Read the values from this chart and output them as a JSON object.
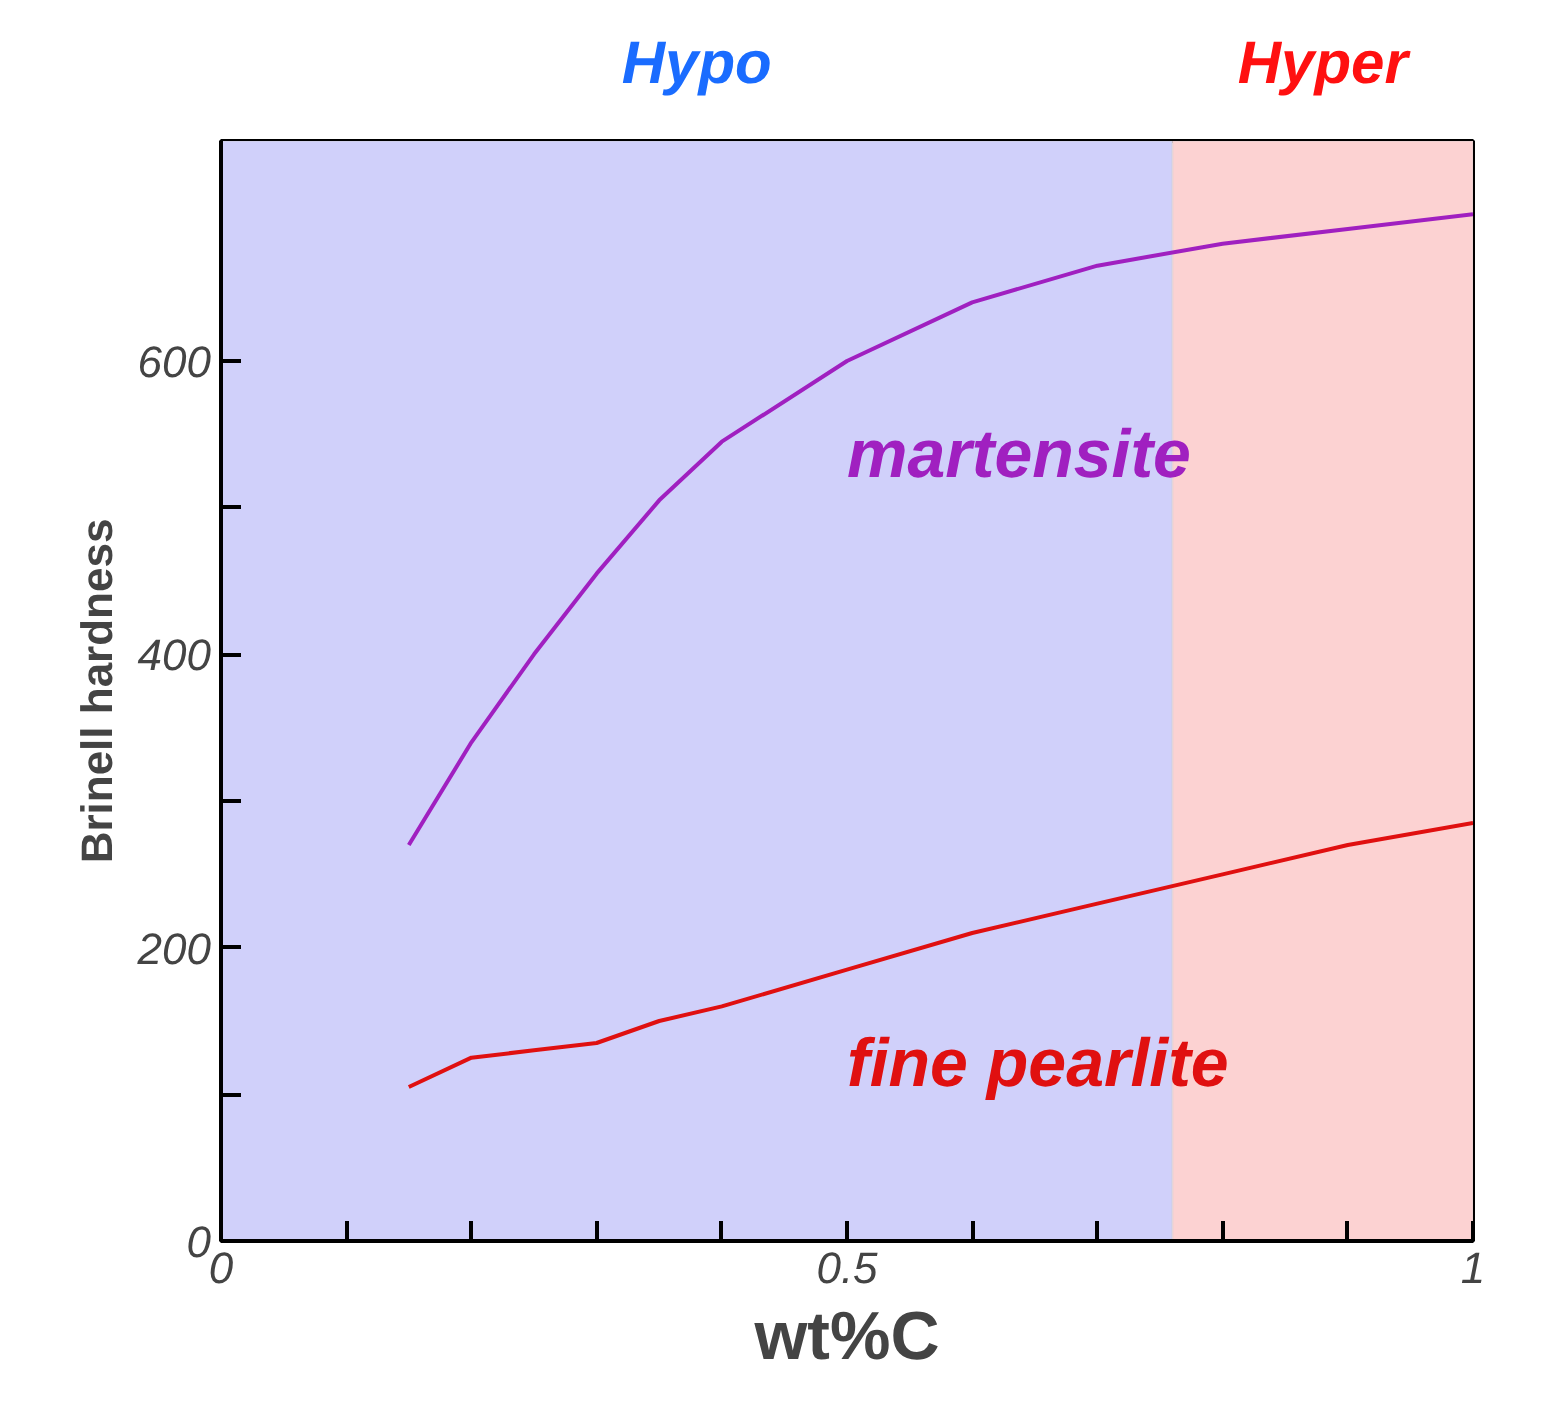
{
  "chart_data": {
    "type": "line",
    "xlabel": "wt%C",
    "ylabel": "Brinell hardness",
    "xlim": [
      0,
      1
    ],
    "ylim": [
      0,
      750
    ],
    "xticks": [
      0,
      {
        "value": 0.1,
        "label": null
      },
      {
        "value": 0.2,
        "label": null
      },
      {
        "value": 0.3,
        "label": null
      },
      {
        "value": 0.4,
        "label": null
      },
      0.5,
      {
        "value": 0.6,
        "label": null
      },
      {
        "value": 0.7,
        "label": null
      },
      {
        "value": 0.8,
        "label": null
      },
      {
        "value": 0.9,
        "label": null
      },
      1
    ],
    "yticks": [
      0,
      {
        "value": 100,
        "label": null
      },
      200,
      {
        "value": 300,
        "label": null
      },
      400,
      {
        "value": 500,
        "label": null
      },
      600
    ],
    "x": [
      0.15,
      0.2,
      0.25,
      0.3,
      0.35,
      0.4,
      0.5,
      0.6,
      0.7,
      0.8,
      0.9,
      1.0
    ],
    "series": [
      {
        "name": "martensite",
        "color": "#a020c0",
        "values": [
          270,
          340,
          400,
          455,
          505,
          545,
          600,
          640,
          665,
          680,
          690,
          700
        ]
      },
      {
        "name": "fine pearlite",
        "color": "#e01010",
        "values": [
          105,
          125,
          130,
          135,
          150,
          160,
          185,
          210,
          230,
          250,
          270,
          285
        ]
      }
    ],
    "bands": [
      {
        "axis": "x",
        "from": 0,
        "to": 0.76,
        "label": "Hypo",
        "color": "#d0d0fa"
      },
      {
        "axis": "x",
        "from": 0.76,
        "to": 1,
        "label": "Hyper",
        "color": "#fcd2d2"
      }
    ],
    "marker": "none",
    "line_style": "solid"
  }
}
